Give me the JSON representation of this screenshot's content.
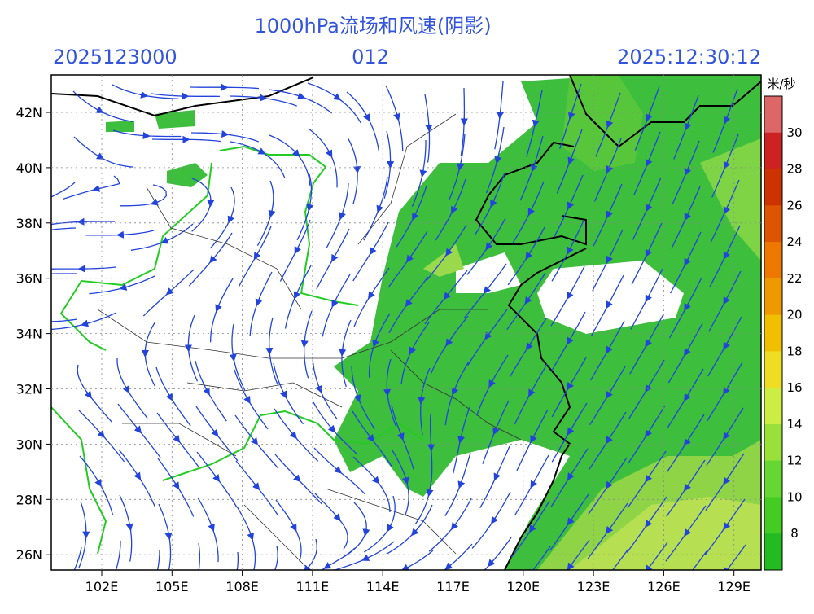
{
  "header": {
    "title": "1000hPa流场和风速(阴影)",
    "init_time": "2025123000",
    "forecast_hour": "012",
    "valid_time": "2025:12:30:12"
  },
  "axes": {
    "lat_labels": [
      "42N",
      "40N",
      "38N",
      "36N",
      "34N",
      "32N",
      "30N",
      "28N",
      "26N"
    ],
    "lon_labels": [
      "102E",
      "105E",
      "108E",
      "111E",
      "114E",
      "117E",
      "120E",
      "123E",
      "126E",
      "129E"
    ]
  },
  "colorbar": {
    "unit": "米/秒",
    "labels": [
      "30",
      "28",
      "26",
      "24",
      "22",
      "20",
      "18",
      "16",
      "14",
      "12",
      "10",
      "8"
    ]
  }
}
